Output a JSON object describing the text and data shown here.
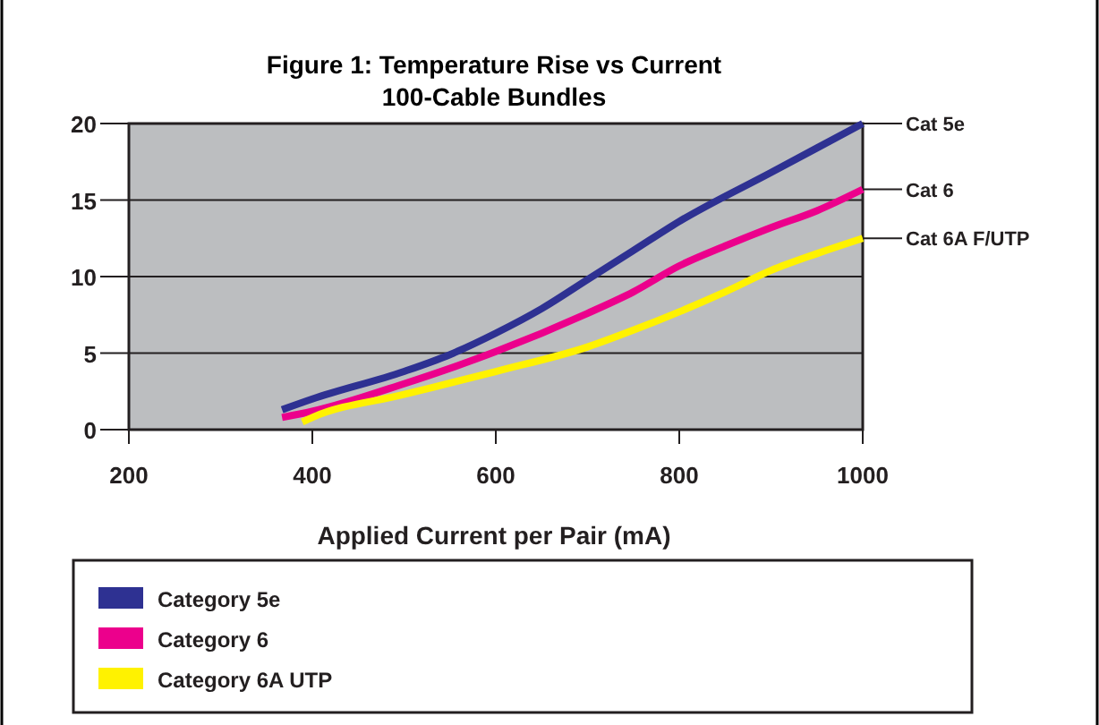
{
  "chart_data": {
    "type": "line",
    "title": "Figure 1: Temperature Rise vs Current",
    "subtitle": "100-Cable Bundles",
    "xlabel": "Applied Current per Pair (mA)",
    "xlim": [
      200,
      1000
    ],
    "xticks": [
      200,
      400,
      600,
      800,
      1000
    ],
    "ylim": [
      0,
      20
    ],
    "yticks": [
      0,
      5,
      10,
      15,
      20
    ],
    "grid": "y",
    "legend": "bottom",
    "marker": "none",
    "line_style": "solid",
    "series": [
      {
        "name": "Category 5e",
        "color": "#2e3192",
        "x": [
          367,
          400,
          500,
          550,
          600,
          650,
          700,
          750,
          800,
          900,
          1000
        ],
        "values": [
          1.3,
          2.0,
          3.8,
          4.9,
          6.3,
          7.9,
          9.8,
          11.7,
          13.6,
          16.8,
          20
        ]
      },
      {
        "name": "Category 6",
        "color": "#ec008c",
        "x": [
          367,
          400,
          500,
          600,
          700,
          750,
          800,
          850,
          900,
          950,
          1000
        ],
        "values": [
          0.8,
          1.2,
          3.0,
          5.1,
          7.6,
          9.0,
          10.7,
          12.0,
          13.2,
          14.3,
          15.7
        ]
      },
      {
        "name": "Category 6A UTP",
        "color": "#fff200",
        "x": [
          389,
          400,
          500,
          600,
          700,
          750,
          800,
          850,
          900,
          950,
          1000
        ],
        "values": [
          0.5,
          0.8,
          2.3,
          3.8,
          5.4,
          6.5,
          7.7,
          9.0,
          10.4,
          11.5,
          12.5
        ]
      }
    ],
    "annotations": [
      "Cat 5e",
      "Cat 6",
      "Cat 6A F/UTP"
    ]
  }
}
